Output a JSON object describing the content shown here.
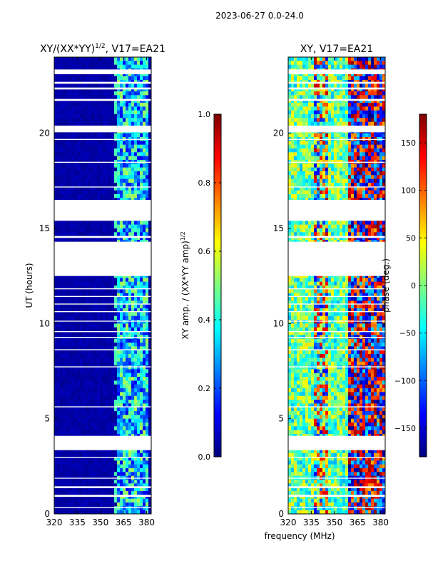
{
  "suptitle": "2023-06-27 0.0-24.0",
  "colormap": {
    "stops": [
      "#00007f",
      "#0000ff",
      "#007fff",
      "#00ffff",
      "#7fff7f",
      "#ffff00",
      "#ff7f00",
      "#ff0000",
      "#7f0000"
    ],
    "flag_color": "#ffffff",
    "axes_frame_color": "#000000"
  },
  "chart_data": [
    {
      "type": "heatmap",
      "title_main": "XY/(XX*YY)",
      "title_sup": "1/2",
      "title_suffix": ", V17=EA21",
      "xlabel": "",
      "ylabel": "UT (hours)",
      "xlim": [
        320,
        383
      ],
      "ylim": [
        0,
        24
      ],
      "xticks": [
        "320",
        "335",
        "350",
        "365",
        "380"
      ],
      "yticks": [
        "0",
        "5",
        "10",
        "15",
        "20"
      ],
      "xtick_values": [
        320,
        335,
        350,
        365,
        380
      ],
      "ytick_values": [
        0,
        5,
        10,
        15,
        20
      ],
      "gaps_hours": [
        [
          0.3,
          0.35
        ],
        [
          0.9,
          1.0
        ],
        [
          1.35,
          1.45
        ],
        [
          1.85,
          1.9
        ],
        [
          2.95,
          3.0
        ],
        [
          3.35,
          4.1
        ],
        [
          5.6,
          5.65
        ],
        [
          7.7,
          7.75
        ],
        [
          8.6,
          8.65
        ],
        [
          9.25,
          9.3
        ],
        [
          9.55,
          9.6
        ],
        [
          10.1,
          10.15
        ],
        [
          10.6,
          10.65
        ],
        [
          11.0,
          11.05
        ],
        [
          11.4,
          11.45
        ],
        [
          11.8,
          11.85
        ],
        [
          12.5,
          14.3
        ],
        [
          14.5,
          14.6
        ],
        [
          15.4,
          16.5
        ],
        [
          17.15,
          17.2
        ],
        [
          18.45,
          18.5
        ],
        [
          19.65,
          19.7
        ],
        [
          20.05,
          20.4
        ],
        [
          21.7,
          21.8
        ],
        [
          22.3,
          22.4
        ],
        [
          22.6,
          22.7
        ],
        [
          23.1,
          23.35
        ]
      ],
      "colorbar": {
        "label_main": "XY amp. / (XX*YY amp)",
        "label_sup": "1/2",
        "range": [
          0.0,
          1.0
        ],
        "ticks": [
          "0.0",
          "0.2",
          "0.4",
          "0.6",
          "0.8",
          "1.0"
        ],
        "tick_values": [
          0.0,
          0.2,
          0.4,
          0.6,
          0.8,
          1.0
        ]
      }
    },
    {
      "type": "heatmap",
      "title_main": "XY, V17=EA21",
      "title_sup": "",
      "title_suffix": "",
      "xlabel": "frequency (MHz)",
      "ylabel": "",
      "xlim": [
        320,
        383
      ],
      "ylim": [
        0,
        24
      ],
      "xticks": [
        "320",
        "335",
        "350",
        "365",
        "380"
      ],
      "yticks": [
        "0",
        "5",
        "10",
        "15",
        "20"
      ],
      "xtick_values": [
        320,
        335,
        350,
        365,
        380
      ],
      "ytick_values": [
        0,
        5,
        10,
        15,
        20
      ],
      "gaps_hours": [
        [
          0.3,
          0.35
        ],
        [
          0.9,
          1.0
        ],
        [
          1.35,
          1.45
        ],
        [
          1.85,
          1.9
        ],
        [
          2.95,
          3.0
        ],
        [
          3.35,
          4.1
        ],
        [
          5.6,
          5.65
        ],
        [
          7.7,
          7.75
        ],
        [
          8.6,
          8.65
        ],
        [
          9.25,
          9.3
        ],
        [
          9.55,
          9.6
        ],
        [
          10.1,
          10.15
        ],
        [
          10.6,
          10.65
        ],
        [
          11.0,
          11.05
        ],
        [
          11.4,
          11.45
        ],
        [
          11.8,
          11.85
        ],
        [
          12.5,
          14.3
        ],
        [
          14.5,
          14.6
        ],
        [
          15.4,
          16.5
        ],
        [
          17.15,
          17.2
        ],
        [
          18.45,
          18.5
        ],
        [
          19.65,
          19.7
        ],
        [
          20.05,
          20.4
        ],
        [
          21.7,
          21.8
        ],
        [
          22.3,
          22.4
        ],
        [
          22.6,
          22.7
        ],
        [
          23.1,
          23.35
        ]
      ],
      "colorbar": {
        "label_main": "phase (deg.)",
        "label_sup": "",
        "range": [
          -180,
          180
        ],
        "ticks": [
          "−150",
          "−100",
          "−50",
          "0",
          "50",
          "100",
          "150"
        ],
        "tick_values": [
          -150,
          -100,
          -50,
          0,
          50,
          100,
          150
        ]
      }
    }
  ]
}
